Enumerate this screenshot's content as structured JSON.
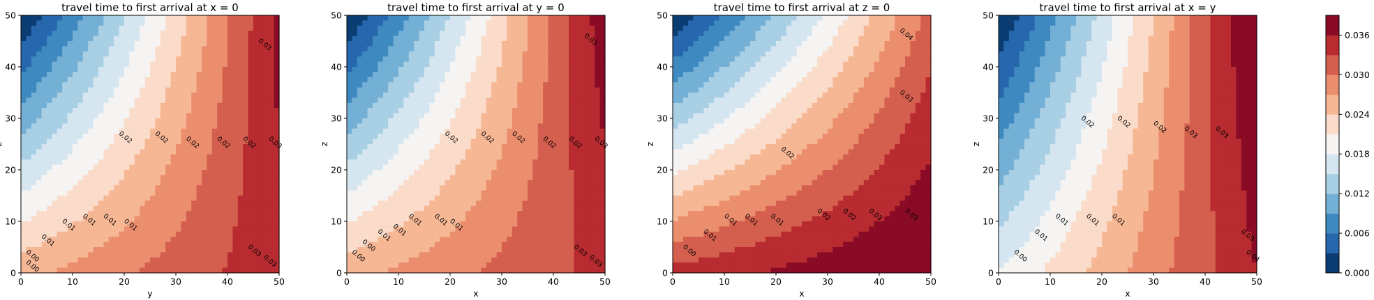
{
  "chart_data": [
    {
      "type": "contourf",
      "title": "travel time to first arrival at x = 0",
      "xlabel": "y",
      "ylabel": "z",
      "xlim": [
        0,
        50
      ],
      "ylim": [
        50,
        0
      ],
      "xticks": [
        "0",
        "10",
        "20",
        "30",
        "40",
        "50"
      ],
      "yticks": [
        "0",
        "10",
        "20",
        "30",
        "40",
        "50"
      ],
      "corner_times": {
        "top_left": 0.0,
        "top_right": 0.037,
        "bottom_left": 0.026,
        "bottom_right": 0.035
      },
      "contour_labels": [
        {
          "text": "0.00",
          "x": 2,
          "y": 1
        },
        {
          "text": "0.00",
          "x": 2,
          "y": 3
        },
        {
          "text": "0.01",
          "x": 5,
          "y": 6
        },
        {
          "text": "0.01",
          "x": 9,
          "y": 9
        },
        {
          "text": "0.01",
          "x": 13,
          "y": 10
        },
        {
          "text": "0.01",
          "x": 17,
          "y": 10
        },
        {
          "text": "0.01",
          "x": 21,
          "y": 9
        },
        {
          "text": "0.02",
          "x": 20,
          "y": 26
        },
        {
          "text": "0.02",
          "x": 27,
          "y": 26
        },
        {
          "text": "0.02",
          "x": 33,
          "y": 25
        },
        {
          "text": "0.02",
          "x": 39,
          "y": 25
        },
        {
          "text": "0.02",
          "x": 44,
          "y": 25
        },
        {
          "text": "0.03",
          "x": 49,
          "y": 25
        },
        {
          "text": "0.03",
          "x": 47,
          "y": 44
        },
        {
          "text": "0.03",
          "x": 45,
          "y": 4
        },
        {
          "text": "0.03",
          "x": 48,
          "y": 2
        }
      ]
    },
    {
      "type": "contourf",
      "title": "travel time to first arrival at y = 0",
      "xlabel": "x",
      "ylabel": "z",
      "xlim": [
        0,
        50
      ],
      "ylim": [
        50,
        0
      ],
      "xticks": [
        "0",
        "10",
        "20",
        "30",
        "40",
        "50"
      ],
      "yticks": [
        "0",
        "10",
        "20",
        "30",
        "40",
        "50"
      ],
      "corner_times": {
        "top_left": 0.0,
        "top_right": 0.038,
        "bottom_left": 0.026,
        "bottom_right": 0.034
      },
      "contour_labels": [
        {
          "text": "0.00",
          "x": 2,
          "y": 3
        },
        {
          "text": "0.00",
          "x": 4,
          "y": 5
        },
        {
          "text": "0.01",
          "x": 7,
          "y": 7
        },
        {
          "text": "0.01",
          "x": 10,
          "y": 8
        },
        {
          "text": "0.01",
          "x": 13,
          "y": 10
        },
        {
          "text": "0.01",
          "x": 18,
          "y": 10
        },
        {
          "text": "0.01",
          "x": 21,
          "y": 9
        },
        {
          "text": "0.02",
          "x": 20,
          "y": 26
        },
        {
          "text": "0.02",
          "x": 27,
          "y": 26
        },
        {
          "text": "0.02",
          "x": 33,
          "y": 26
        },
        {
          "text": "0.02",
          "x": 39,
          "y": 25
        },
        {
          "text": "0.02",
          "x": 44,
          "y": 25
        },
        {
          "text": "0.03",
          "x": 49,
          "y": 25
        },
        {
          "text": "0.03",
          "x": 47,
          "y": 45
        },
        {
          "text": "0.03",
          "x": 45,
          "y": 4
        },
        {
          "text": "0.03",
          "x": 48,
          "y": 2
        }
      ]
    },
    {
      "type": "contourf",
      "title": "travel time to first arrival at z = 0",
      "xlabel": "x",
      "ylabel": "z",
      "xlim": [
        0,
        50
      ],
      "ylim": [
        50,
        0
      ],
      "xticks": [
        "0",
        "10",
        "20",
        "30",
        "40",
        "50"
      ],
      "yticks": [
        "0",
        "10",
        "20",
        "30",
        "40",
        "50"
      ],
      "corner_times": {
        "top_left": 0.0,
        "top_right": 0.031,
        "bottom_left": 0.034,
        "bottom_right": 0.04
      },
      "contour_labels": [
        {
          "text": "0.00",
          "x": 3,
          "y": 4
        },
        {
          "text": "0.01",
          "x": 7,
          "y": 7
        },
        {
          "text": "0.01",
          "x": 11,
          "y": 10
        },
        {
          "text": "0.01",
          "x": 15,
          "y": 10
        },
        {
          "text": "0.01",
          "x": 20,
          "y": 10
        },
        {
          "text": "0.02",
          "x": 22,
          "y": 23
        },
        {
          "text": "0.02",
          "x": 29,
          "y": 11
        },
        {
          "text": "0.02",
          "x": 34,
          "y": 11
        },
        {
          "text": "0.03",
          "x": 39,
          "y": 11
        },
        {
          "text": "0.03",
          "x": 46,
          "y": 11
        },
        {
          "text": "0.03",
          "x": 45,
          "y": 34
        },
        {
          "text": "0.04",
          "x": 45,
          "y": 46
        }
      ]
    },
    {
      "type": "contourf",
      "title": "travel time to first arrival at x = y",
      "xlabel": "x",
      "ylabel": "z",
      "xlim": [
        0,
        50
      ],
      "ylim": [
        50,
        0
      ],
      "xticks": [
        "0",
        "10",
        "20",
        "30",
        "40",
        "50"
      ],
      "yticks": [
        "0",
        "10",
        "20",
        "30",
        "40",
        "50"
      ],
      "corner_times": {
        "top_left": 0.0,
        "top_right": 0.04,
        "bottom_left": 0.018,
        "bottom_right": 0.036
      },
      "contour_labels": [
        {
          "text": "0.00",
          "x": 4,
          "y": 3
        },
        {
          "text": "0.01",
          "x": 8,
          "y": 7
        },
        {
          "text": "0.01",
          "x": 12,
          "y": 10
        },
        {
          "text": "0.01",
          "x": 18,
          "y": 10
        },
        {
          "text": "0.01",
          "x": 23,
          "y": 10
        },
        {
          "text": "0.02",
          "x": 17,
          "y": 29
        },
        {
          "text": "0.02",
          "x": 24,
          "y": 29
        },
        {
          "text": "0.02",
          "x": 31,
          "y": 28
        },
        {
          "text": "0.03",
          "x": 37,
          "y": 27
        },
        {
          "text": "0.03",
          "x": 43,
          "y": 27
        },
        {
          "text": "0.03",
          "x": 48,
          "y": 7
        },
        {
          "text": "0.04",
          "x": 49,
          "y": 3
        }
      ]
    }
  ],
  "colorbar": {
    "ticks": [
      "0.000",
      "0.006",
      "0.012",
      "0.018",
      "0.024",
      "0.030",
      "0.036"
    ],
    "range": [
      0,
      0.039
    ],
    "levels": [
      0,
      0.003,
      0.006,
      0.009,
      0.012,
      0.015,
      0.018,
      0.021,
      0.024,
      0.027,
      0.03,
      0.033,
      0.036,
      0.039
    ],
    "colormap": "RdBu_r",
    "colors": [
      "#0b3d72",
      "#2767ad",
      "#3e8ac0",
      "#74b0d5",
      "#a9cfe5",
      "#d5e6f1",
      "#f5f4f3",
      "#fbdbc9",
      "#f6b795",
      "#eb8e6e",
      "#d55f4e",
      "#b82b30",
      "#8a0b26"
    ]
  }
}
